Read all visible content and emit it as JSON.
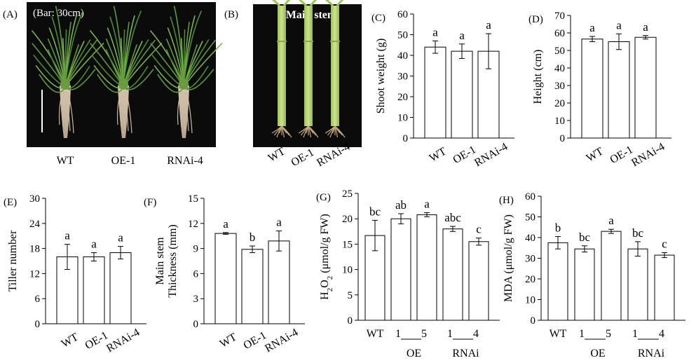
{
  "photos": [
    {
      "label": "(A)",
      "bar_note": "(Bar: 30cm)",
      "categories": [
        "WT",
        "OE-1",
        "RNAi-4"
      ]
    },
    {
      "label": "(B)",
      "title": "Main stem",
      "categories": [
        "WT",
        "OE-1",
        "RNAi-4"
      ]
    }
  ],
  "chart_data": [
    {
      "label": "(C)",
      "type": "bar",
      "ylabel": "Shoot weight (g)",
      "ylim": [
        0,
        60
      ],
      "yticks": [
        0,
        10,
        20,
        30,
        40,
        50,
        60
      ],
      "categories": [
        "WT",
        "OE-1",
        "RNAi-4"
      ],
      "values": [
        44,
        42,
        42
      ],
      "errors": [
        3,
        3.5,
        8.5
      ],
      "significance": [
        "a",
        "a",
        "a"
      ]
    },
    {
      "label": "(D)",
      "type": "bar",
      "ylabel": "Height (cm)",
      "ylim": [
        0,
        70
      ],
      "yticks": [
        0,
        10,
        20,
        30,
        40,
        50,
        60,
        70
      ],
      "categories": [
        "WT",
        "OE-1",
        "RNAi-4"
      ],
      "values": [
        56.5,
        55,
        57.5
      ],
      "errors": [
        1.5,
        4.5,
        1
      ],
      "significance": [
        "a",
        "a",
        "a"
      ]
    },
    {
      "label": "(E)",
      "type": "bar",
      "ylabel": "Tiller number",
      "ylim": [
        0,
        30
      ],
      "yticks": [
        0,
        6,
        12,
        18,
        24,
        30
      ],
      "categories": [
        "WT",
        "OE-1",
        "RNAi-4"
      ],
      "values": [
        16,
        16,
        17
      ],
      "errors": [
        3,
        1,
        1.5
      ],
      "significance": [
        "a",
        "a",
        "a"
      ]
    },
    {
      "label": "(F)",
      "type": "bar",
      "ylabel": "Main stem",
      "ylabel2": "Thickness (mm)",
      "ylim": [
        0,
        15
      ],
      "yticks": [
        0,
        3,
        6,
        9,
        12,
        15
      ],
      "categories": [
        "WT",
        "OE-1",
        "RNAi-4"
      ],
      "values": [
        10.8,
        8.9,
        9.9
      ],
      "errors": [
        0.1,
        0.4,
        1.2
      ],
      "significance": [
        "a",
        "b",
        "a"
      ]
    },
    {
      "label": "(G)",
      "type": "bar",
      "ylabel_parts": [
        "H",
        "2",
        "O",
        "2",
        " (μmol/g FW)"
      ],
      "ylim": [
        0,
        25
      ],
      "yticks": [
        0,
        5,
        10,
        15,
        20,
        25
      ],
      "categories": [
        "WT",
        "1",
        "5",
        "1",
        "4"
      ],
      "groups": [
        {
          "name": "OE",
          "from": 1,
          "to": 2
        },
        {
          "name": "RNAi",
          "from": 3,
          "to": 4
        }
      ],
      "values": [
        16.7,
        20,
        20.8,
        18,
        15.5
      ],
      "errors": [
        3,
        1,
        0.4,
        0.5,
        0.7
      ],
      "significance": [
        "bc",
        "ab",
        "a",
        "abc",
        "c"
      ]
    },
    {
      "label": "(H)",
      "type": "bar",
      "ylabel": "MDA (μmol/g FW)",
      "ylim": [
        0,
        60
      ],
      "yticks": [
        0,
        10,
        20,
        30,
        40,
        50,
        60
      ],
      "categories": [
        "WT",
        "1",
        "5",
        "1",
        "4"
      ],
      "groups": [
        {
          "name": "OE",
          "from": 1,
          "to": 2
        },
        {
          "name": "RNAi",
          "from": 3,
          "to": 4
        }
      ],
      "values": [
        37.5,
        34.5,
        43,
        34.5,
        31.5
      ],
      "errors": [
        3,
        1.5,
        1,
        3.5,
        1.2
      ],
      "significance": [
        "b",
        "bc",
        "a",
        "bc",
        "c"
      ]
    }
  ]
}
